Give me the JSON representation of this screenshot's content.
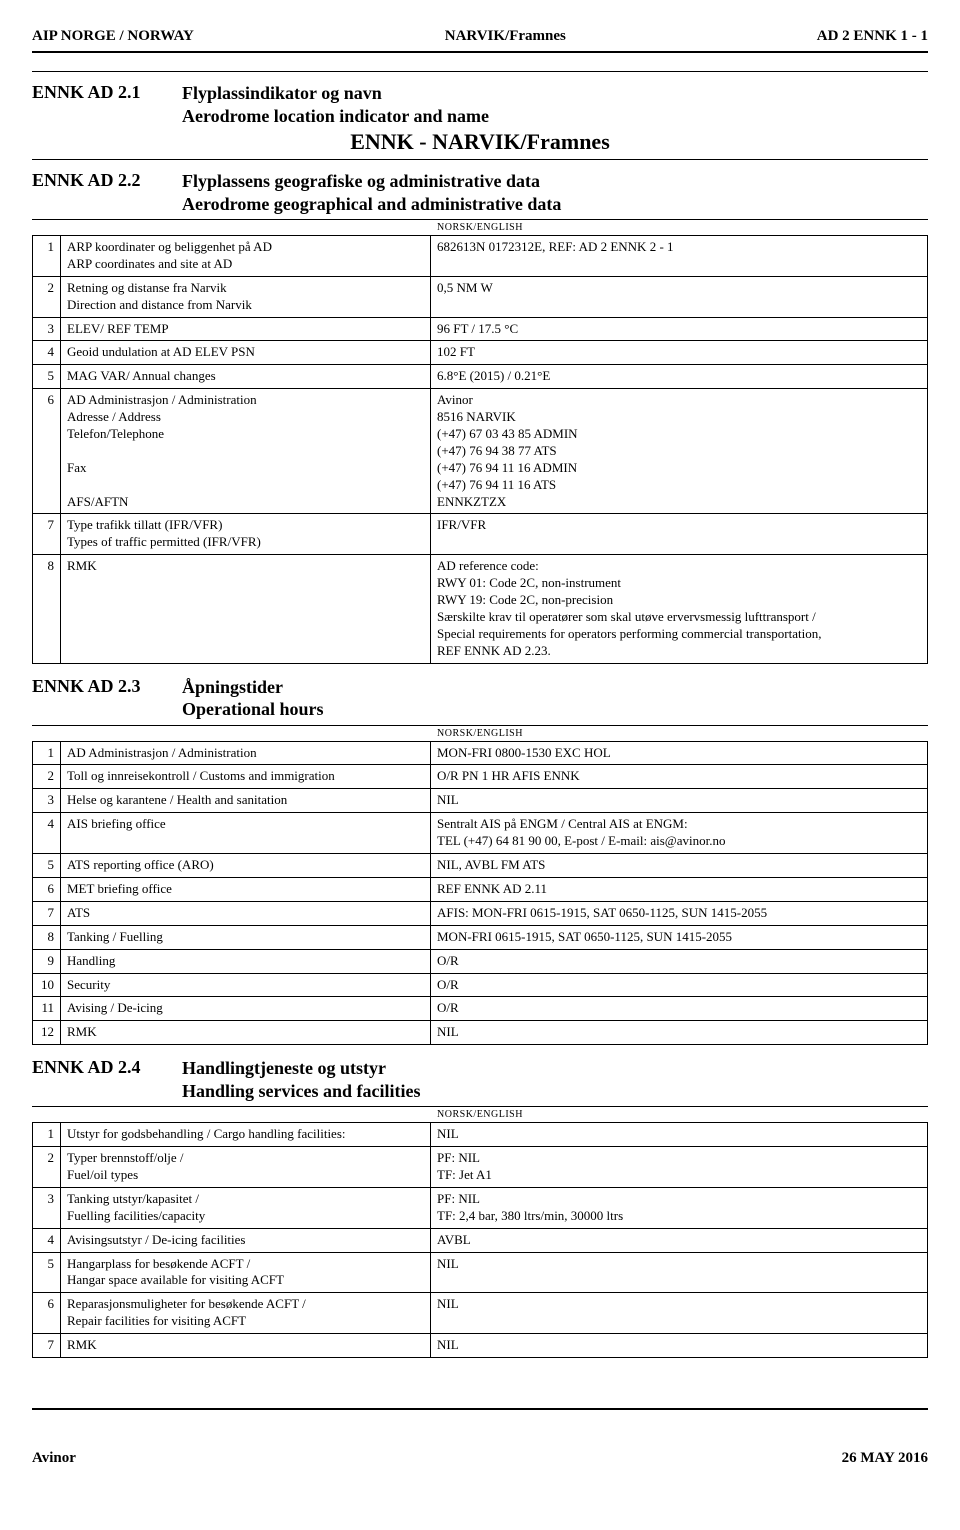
{
  "header": {
    "left": "AIP NORGE / NORWAY",
    "center": "NARVIK/Framnes",
    "right": "AD 2 ENNK 1 - 1"
  },
  "section1": {
    "code": "ENNK AD 2.1",
    "title_no": "Flyplassindikator og navn",
    "title_en": "Aerodrome location indicator and name",
    "main_name": "ENNK - NARVIK/Framnes"
  },
  "section2": {
    "code": "ENNK AD 2.2",
    "title_no": "Flyplassens geografiske og administrative data",
    "title_en": "Aerodrome geographical and administrative data",
    "norsk_english": "NORSK/ENGLISH",
    "rows": [
      {
        "n": "1",
        "label_lines": [
          "ARP koordinater og beliggenhet på AD",
          "ARP coordinates and site at AD"
        ],
        "value_lines": [
          "682613N 0172312E, REF: AD 2 ENNK 2 - 1"
        ]
      },
      {
        "n": "2",
        "label_lines": [
          "Retning og distanse fra Narvik",
          "Direction and distance from Narvik"
        ],
        "value_lines": [
          "0,5 NM W"
        ]
      },
      {
        "n": "3",
        "label_lines": [
          "ELEV/ REF TEMP"
        ],
        "value_lines": [
          "96 FT / 17.5 °C"
        ]
      },
      {
        "n": "4",
        "label_lines": [
          "Geoid undulation at AD ELEV PSN"
        ],
        "value_lines": [
          "102 FT"
        ]
      },
      {
        "n": "5",
        "label_lines": [
          "MAG VAR/ Annual changes"
        ],
        "value_lines": [
          "6.8°E (2015) / 0.21°E"
        ]
      },
      {
        "n": "6",
        "label_lines": [
          "AD Administrasjon / Administration",
          "Adresse / Address",
          "Telefon/Telephone",
          "",
          "Fax",
          "",
          "AFS/AFTN"
        ],
        "value_lines": [
          "Avinor",
          "8516 NARVIK",
          "(+47) 67 03 43 85 ADMIN",
          "(+47) 76 94 38 77 ATS",
          "(+47) 76 94 11 16 ADMIN",
          "(+47) 76 94 11 16 ATS",
          "ENNKZTZX"
        ]
      },
      {
        "n": "7",
        "label_lines": [
          "Type trafikk tillatt (IFR/VFR)",
          "Types of traffic permitted (IFR/VFR)"
        ],
        "value_lines": [
          "IFR/VFR"
        ]
      },
      {
        "n": "8",
        "label_lines": [
          "RMK"
        ],
        "value_lines": [
          "AD reference code:",
          "RWY 01: Code 2C, non-instrument",
          "RWY 19: Code 2C, non-precision",
          "Særskilte krav til operatører som skal utøve ervervsmessig lufttransport /",
          "Special requirements for operators performing commercial transportation,",
          "REF ENNK AD 2.23."
        ]
      }
    ]
  },
  "section3": {
    "code": "ENNK AD 2.3",
    "title_no": "Åpningstider",
    "title_en": "Operational hours",
    "norsk_english": "NORSK/ENGLISH",
    "rows": [
      {
        "n": "1",
        "label_lines": [
          "AD Administrasjon / Administration"
        ],
        "value_lines": [
          "MON-FRI 0800-1530 EXC HOL"
        ]
      },
      {
        "n": "2",
        "label_lines": [
          "Toll og innreisekontroll / Customs and immigration"
        ],
        "value_lines": [
          "O/R PN 1 HR AFIS ENNK"
        ]
      },
      {
        "n": "3",
        "label_lines": [
          "Helse og karantene / Health and sanitation"
        ],
        "value_lines": [
          "NIL"
        ]
      },
      {
        "n": "4",
        "label_lines": [
          "AIS briefing office"
        ],
        "value_lines": [
          "Sentralt AIS på ENGM / Central AIS at ENGM:",
          "TEL (+47) 64 81 90 00, E-post / E-mail: ais@avinor.no"
        ]
      },
      {
        "n": "5",
        "label_lines": [
          "ATS reporting office (ARO)"
        ],
        "value_lines": [
          "NIL, AVBL FM ATS"
        ]
      },
      {
        "n": "6",
        "label_lines": [
          "MET briefing office"
        ],
        "value_lines": [
          "REF ENNK AD 2.11"
        ]
      },
      {
        "n": "7",
        "label_lines": [
          "ATS"
        ],
        "value_lines": [
          "AFIS:   MON-FRI 0615-1915, SAT 0650-1125, SUN 1415-2055"
        ]
      },
      {
        "n": "8",
        "label_lines": [
          "Tanking / Fuelling"
        ],
        "value_lines": [
          "MON-FRI 0615-1915, SAT 0650-1125, SUN 1415-2055"
        ]
      },
      {
        "n": "9",
        "label_lines": [
          "Handling"
        ],
        "value_lines": [
          "O/R"
        ]
      },
      {
        "n": "10",
        "label_lines": [
          "Security"
        ],
        "value_lines": [
          "O/R"
        ]
      },
      {
        "n": "11",
        "label_lines": [
          "Avising / De-icing"
        ],
        "value_lines": [
          "O/R"
        ]
      },
      {
        "n": "12",
        "label_lines": [
          "RMK"
        ],
        "value_lines": [
          "NIL"
        ]
      }
    ]
  },
  "section4": {
    "code": "ENNK AD 2.4",
    "title_no": "Handlingtjeneste og utstyr",
    "title_en": "Handling services and facilities",
    "norsk_english": "NORSK/ENGLISH",
    "rows": [
      {
        "n": "1",
        "label_lines": [
          "Utstyr for godsbehandling / Cargo handling facilities:"
        ],
        "value_lines": [
          "NIL"
        ]
      },
      {
        "n": "2",
        "label_lines": [
          "Typer brennstoff/olje /",
          "Fuel/oil types"
        ],
        "value_lines": [
          "PF: NIL",
          "TF: Jet A1"
        ]
      },
      {
        "n": "3",
        "label_lines": [
          "Tanking utstyr/kapasitet /",
          "Fuelling facilities/capacity"
        ],
        "value_lines": [
          "PF: NIL",
          "TF: 2,4 bar, 380 ltrs/min, 30000 ltrs"
        ]
      },
      {
        "n": "4",
        "label_lines": [
          "Avisingsutstyr / De-icing facilities"
        ],
        "value_lines": [
          "AVBL"
        ]
      },
      {
        "n": "5",
        "label_lines": [
          "Hangarplass for besøkende ACFT /",
          "Hangar space available for visiting ACFT"
        ],
        "value_lines": [
          "NIL"
        ]
      },
      {
        "n": "6",
        "label_lines": [
          "Reparasjonsmuligheter for besøkende ACFT /",
          "Repair facilities for visiting ACFT"
        ],
        "value_lines": [
          "NIL"
        ]
      },
      {
        "n": "7",
        "label_lines": [
          "RMK"
        ],
        "value_lines": [
          "NIL"
        ]
      }
    ]
  },
  "footer": {
    "left": "Avinor",
    "right": "26 MAY 2016"
  }
}
